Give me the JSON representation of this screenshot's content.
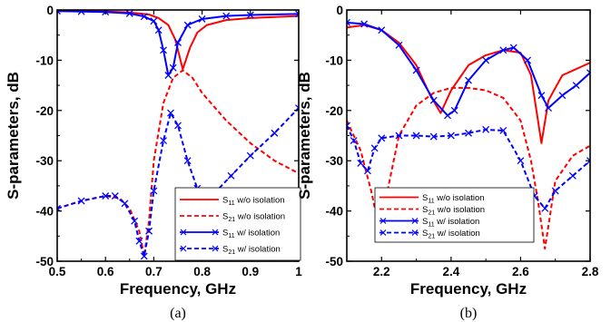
{
  "chart_data": [
    {
      "type": "line",
      "panel_label": "(a)",
      "xlabel": "Frequency, GHz",
      "ylabel": "S-parameters, dB",
      "xlim": [
        0.5,
        1.0
      ],
      "ylim": [
        -50,
        0
      ],
      "xticks": [
        "0.5",
        "0.6",
        "0.7",
        "0.8",
        "0.9",
        "1"
      ],
      "yticks": [
        "0",
        "-10",
        "-20",
        "-30",
        "-40",
        "-50"
      ],
      "grid": false,
      "legend_position": "bottom-right",
      "legend": [
        {
          "base": "S",
          "sub": "11",
          "rest": " w/o isolation"
        },
        {
          "base": "S",
          "sub": "21",
          "rest": " w/o isolation"
        },
        {
          "base": "S",
          "sub": "11",
          "rest": " w/ isolation"
        },
        {
          "base": "S",
          "sub": "21",
          "rest": " w/ isolation"
        }
      ],
      "series": [
        {
          "key": "s11_wo",
          "color": "#ff0000",
          "dash": "solid",
          "marker": "none",
          "x": [
            0.5,
            0.6,
            0.65,
            0.69,
            0.71,
            0.73,
            0.745,
            0.76,
            0.775,
            0.79,
            0.81,
            0.85,
            0.9,
            1.0
          ],
          "y": [
            -0.2,
            -0.3,
            -0.5,
            -0.9,
            -1.6,
            -3.0,
            -6.0,
            -11.8,
            -7.5,
            -4.5,
            -3.0,
            -2.0,
            -1.6,
            -1.2
          ]
        },
        {
          "key": "s21_wo",
          "color": "#ff0000",
          "dash": "dashed",
          "marker": "none",
          "x": [
            0.5,
            0.55,
            0.6,
            0.63,
            0.65,
            0.67,
            0.68,
            0.69,
            0.7,
            0.72,
            0.74,
            0.76,
            0.78,
            0.8,
            0.85,
            0.9,
            0.95,
            1.0
          ],
          "y": [
            -39.5,
            -38.0,
            -37.0,
            -37.5,
            -39.5,
            -44.0,
            -49.0,
            -42.0,
            -30.0,
            -18.5,
            -13.5,
            -12.0,
            -13.5,
            -16.5,
            -22.0,
            -26.5,
            -30.0,
            -32.5
          ]
        },
        {
          "key": "s11_w",
          "color": "#0000ff",
          "dash": "solid",
          "marker": "x",
          "x": [
            0.5,
            0.55,
            0.6,
            0.65,
            0.68,
            0.7,
            0.71,
            0.72,
            0.73,
            0.74,
            0.75,
            0.77,
            0.8,
            0.85,
            0.9,
            1.0
          ],
          "y": [
            -0.2,
            -0.3,
            -0.4,
            -0.7,
            -1.3,
            -2.2,
            -4.0,
            -8.0,
            -13.0,
            -11.5,
            -6.5,
            -3.0,
            -1.8,
            -1.2,
            -1.0,
            -0.8
          ]
        },
        {
          "key": "s21_w",
          "color": "#0000ff",
          "dash": "dashed",
          "marker": "x",
          "x": [
            0.5,
            0.55,
            0.6,
            0.62,
            0.64,
            0.66,
            0.67,
            0.68,
            0.69,
            0.7,
            0.72,
            0.735,
            0.75,
            0.77,
            0.79,
            0.81,
            0.83,
            0.86,
            0.9,
            0.95,
            1.0
          ],
          "y": [
            -39.5,
            -38.0,
            -37.0,
            -37.0,
            -38.5,
            -42.0,
            -46.0,
            -49.0,
            -44.0,
            -36.0,
            -26.0,
            -20.5,
            -23.0,
            -30.0,
            -35.5,
            -37.5,
            -36.0,
            -33.0,
            -29.0,
            -24.5,
            -19.5
          ]
        }
      ]
    },
    {
      "type": "line",
      "panel_label": "(b)",
      "xlabel": "Frequency, GHz",
      "ylabel": "S-parameters, dB",
      "xlim": [
        2.1,
        2.8
      ],
      "ylim": [
        -50,
        0
      ],
      "xticks": [
        "2.2",
        "2.4",
        "2.6",
        "2.8"
      ],
      "yticks": [
        "0",
        "-10",
        "-20",
        "-30",
        "-40",
        "-50"
      ],
      "grid": false,
      "legend_position": "bottom-center",
      "legend": [
        {
          "base": "S",
          "sub": "11",
          "rest": " w/o isolation"
        },
        {
          "base": "S",
          "sub": "21",
          "rest": " w/o isolation"
        },
        {
          "base": "S",
          "sub": "11",
          "rest": " w/ isolation"
        },
        {
          "base": "S",
          "sub": "21",
          "rest": " w/ isolation"
        }
      ],
      "series": [
        {
          "key": "s11_wo",
          "color": "#ff0000",
          "dash": "solid",
          "marker": "none",
          "x": [
            2.1,
            2.15,
            2.2,
            2.25,
            2.3,
            2.34,
            2.37,
            2.4,
            2.45,
            2.5,
            2.55,
            2.6,
            2.63,
            2.66,
            2.68,
            2.72,
            2.8
          ],
          "y": [
            -3.5,
            -3.0,
            -4.0,
            -6.5,
            -11.0,
            -17.0,
            -20.5,
            -16.0,
            -11.0,
            -9.0,
            -8.0,
            -8.5,
            -13.0,
            -26.5,
            -18.0,
            -13.0,
            -10.5
          ]
        },
        {
          "key": "s21_wo",
          "color": "#ff0000",
          "dash": "dashed",
          "marker": "none",
          "x": [
            2.1,
            2.14,
            2.17,
            2.19,
            2.2,
            2.22,
            2.25,
            2.3,
            2.35,
            2.4,
            2.45,
            2.5,
            2.55,
            2.6,
            2.63,
            2.65,
            2.67,
            2.7,
            2.75,
            2.8
          ],
          "y": [
            -22.0,
            -28.0,
            -36.0,
            -42.5,
            -45.0,
            -35.0,
            -25.0,
            -19.0,
            -16.5,
            -15.5,
            -15.5,
            -16.0,
            -17.5,
            -22.0,
            -30.0,
            -38.0,
            -47.5,
            -34.0,
            -29.0,
            -27.0
          ]
        },
        {
          "key": "s11_w",
          "color": "#0000ff",
          "dash": "solid",
          "marker": "x",
          "x": [
            2.1,
            2.15,
            2.2,
            2.25,
            2.3,
            2.35,
            2.39,
            2.41,
            2.45,
            2.5,
            2.55,
            2.58,
            2.62,
            2.66,
            2.68,
            2.72,
            2.76,
            2.8
          ],
          "y": [
            -2.5,
            -2.8,
            -4.0,
            -7.0,
            -12.0,
            -18.0,
            -21.0,
            -20.0,
            -14.0,
            -10.0,
            -8.0,
            -7.5,
            -10.0,
            -17.0,
            -19.5,
            -17.0,
            -15.0,
            -12.5
          ]
        },
        {
          "key": "s21_w",
          "color": "#0000ff",
          "dash": "dashed",
          "marker": "x",
          "x": [
            2.1,
            2.12,
            2.14,
            2.16,
            2.18,
            2.2,
            2.25,
            2.3,
            2.35,
            2.4,
            2.45,
            2.5,
            2.55,
            2.6,
            2.64,
            2.67,
            2.7,
            2.75,
            2.8
          ],
          "y": [
            -23.0,
            -26.0,
            -30.5,
            -32.0,
            -27.5,
            -25.5,
            -25.0,
            -25.0,
            -25.2,
            -25.0,
            -24.5,
            -23.8,
            -24.0,
            -30.0,
            -37.0,
            -39.5,
            -36.0,
            -33.0,
            -30.0
          ]
        }
      ]
    }
  ]
}
